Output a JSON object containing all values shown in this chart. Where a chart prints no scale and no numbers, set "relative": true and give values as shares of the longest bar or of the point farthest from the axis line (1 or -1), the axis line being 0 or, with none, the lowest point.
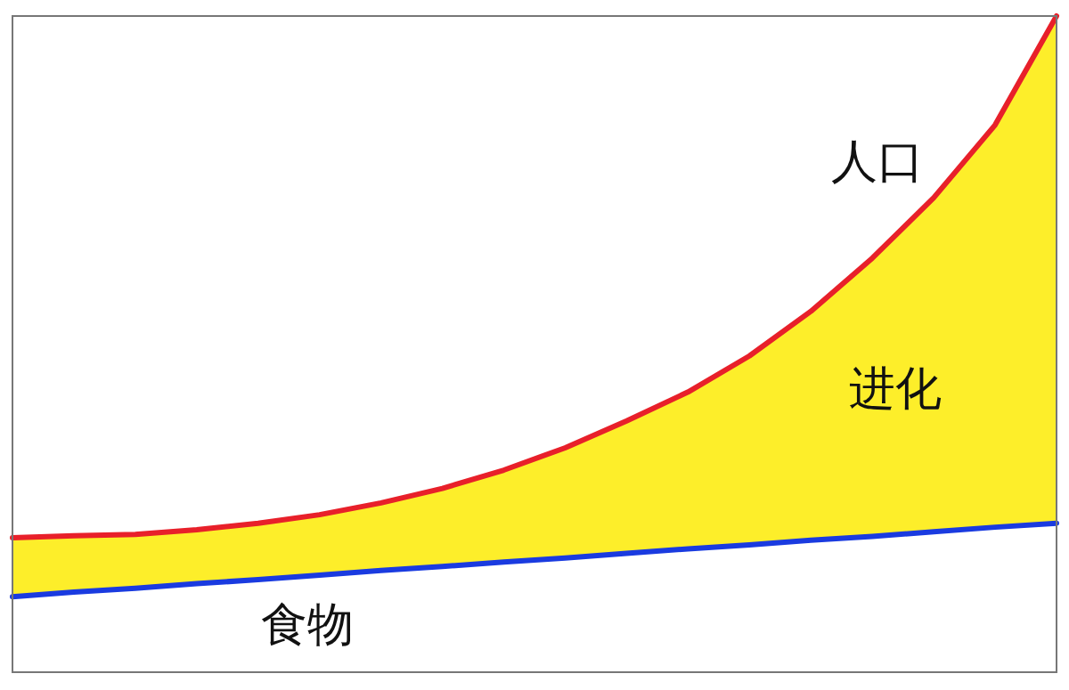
{
  "chart_data": {
    "type": "line",
    "relative": true,
    "categories": [
      null,
      null,
      null,
      null,
      null,
      null,
      null,
      null,
      null,
      null,
      null,
      null,
      null,
      null,
      null,
      null,
      null,
      null
    ],
    "annotations": [
      "进化"
    ],
    "series": [
      {
        "name": "人口",
        "color": "#e8202a",
        "values": [
          0.205,
          0.208,
          0.21,
          0.217,
          0.227,
          0.24,
          0.258,
          0.28,
          0.308,
          0.342,
          0.383,
          0.427,
          0.482,
          0.55,
          0.631,
          0.723,
          0.834,
          1
        ],
        "lower": [
          0.115,
          0.122,
          0.128,
          0.135,
          0.141,
          0.148,
          0.155,
          0.161,
          0.168,
          0.174,
          0.181,
          0.188,
          0.194,
          0.201,
          0.207,
          0.214,
          0.221,
          0.227
        ],
        "upper": [
          0.205,
          0.208,
          0.21,
          0.217,
          0.227,
          0.24,
          0.258,
          0.28,
          0.308,
          0.342,
          0.383,
          0.427,
          0.482,
          0.55,
          0.631,
          0.723,
          0.834,
          1
        ]
      },
      {
        "name": "食物",
        "color": "#1a3be0",
        "values": [
          0.115,
          0.122,
          0.128,
          0.135,
          0.141,
          0.148,
          0.155,
          0.161,
          0.168,
          0.174,
          0.181,
          0.188,
          0.194,
          0.201,
          0.207,
          0.214,
          0.221,
          0.227
        ]
      }
    ]
  }
}
